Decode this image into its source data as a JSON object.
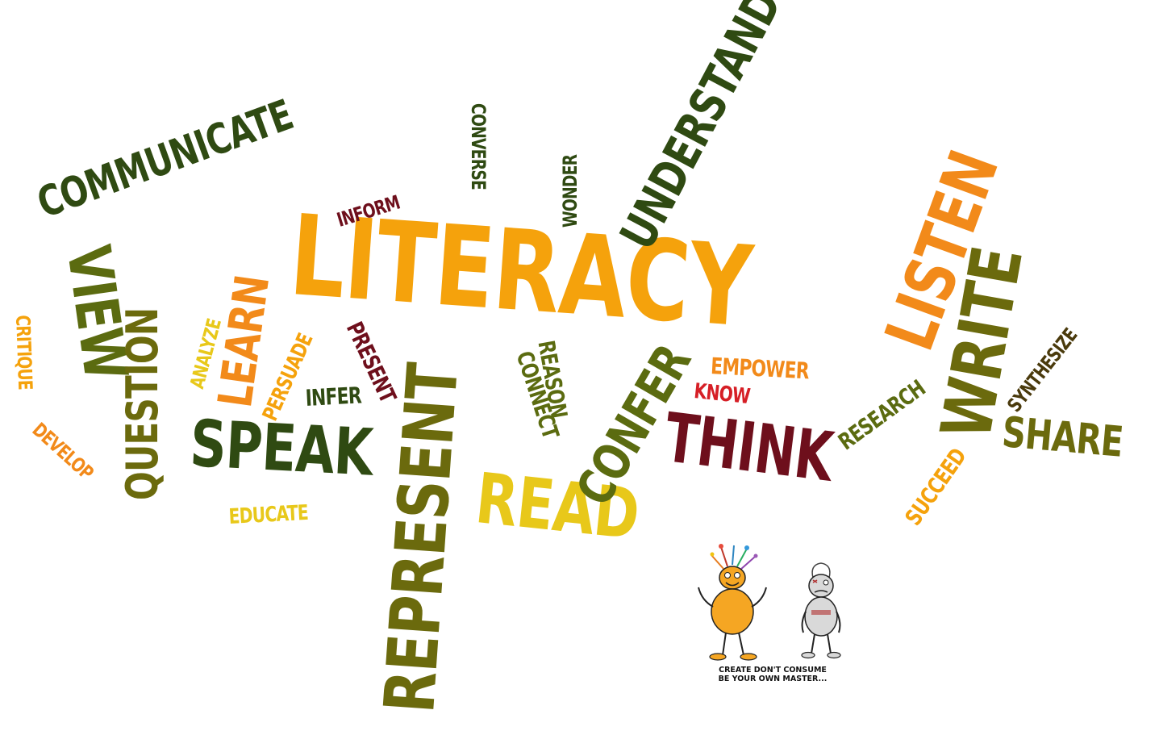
{
  "palette": {
    "dark_green": "#2f4a12",
    "olive": "#6b6a0d",
    "olive_green": "#5b6b10",
    "orange": "#f28a1a",
    "amber": "#f5a20c",
    "yellow": "#e8c81a",
    "maroon": "#6e0f1c",
    "red": "#d61f26",
    "brown": "#4a3a0c"
  },
  "words": [
    {
      "text": "LITERACY",
      "color": "amber"
    },
    {
      "text": "COMMUNICATE",
      "color": "dark_green"
    },
    {
      "text": "UNDERSTAND",
      "color": "dark_green"
    },
    {
      "text": "LISTEN",
      "color": "orange"
    },
    {
      "text": "WRITE",
      "color": "olive"
    },
    {
      "text": "REPRESENT",
      "color": "olive"
    },
    {
      "text": "THINK",
      "color": "maroon"
    },
    {
      "text": "SPEAK",
      "color": "dark_green"
    },
    {
      "text": "READ",
      "color": "yellow"
    },
    {
      "text": "CONFER",
      "color": "olive_green"
    },
    {
      "text": "VIEW",
      "color": "olive_green"
    },
    {
      "text": "QUESTION",
      "color": "olive"
    },
    {
      "text": "LEARN",
      "color": "orange"
    },
    {
      "text": "SHARE",
      "color": "olive"
    },
    {
      "text": "SYNTHESIZE",
      "color": "brown"
    },
    {
      "text": "RESEARCH",
      "color": "olive_green"
    },
    {
      "text": "SUCCEED",
      "color": "amber"
    },
    {
      "text": "EMPOWER",
      "color": "orange"
    },
    {
      "text": "KNOW",
      "color": "red"
    },
    {
      "text": "REASON",
      "color": "olive_green"
    },
    {
      "text": "CONNECT",
      "color": "olive_green"
    },
    {
      "text": "PRESENT",
      "color": "maroon"
    },
    {
      "text": "INFER",
      "color": "dark_green"
    },
    {
      "text": "PERSUADE",
      "color": "amber"
    },
    {
      "text": "ANALYZE",
      "color": "yellow"
    },
    {
      "text": "INFORM",
      "color": "maroon"
    },
    {
      "text": "CONVERSE",
      "color": "dark_green"
    },
    {
      "text": "WONDER",
      "color": "dark_green"
    },
    {
      "text": "CRITIQUE",
      "color": "amber"
    },
    {
      "text": "DEVELOP",
      "color": "orange"
    },
    {
      "text": "EDUCATE",
      "color": "yellow"
    }
  ],
  "caption": {
    "line1": "CREATE DON'T CONSUME",
    "line2": "BE YOUR OWN MASTER..."
  }
}
